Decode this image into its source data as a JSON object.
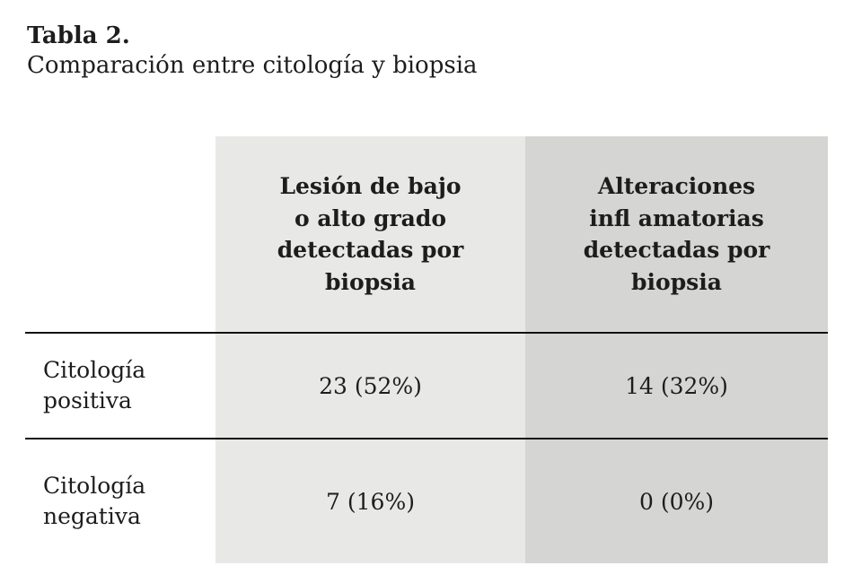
{
  "page": {
    "title_bold": "Tabla 2.",
    "title_rest": "Comparación entre citología y biopsia"
  },
  "chart_data": {
    "type": "table",
    "title": "Tabla 2. Comparación entre citología y biopsia",
    "columns": [
      "",
      "Lesión de bajo o alto grado detectadas por biopsia",
      "Alteraciones infl amatorias detectadas por biopsia"
    ],
    "rows": [
      [
        "Citología positiva",
        "23 (52%)",
        "14 (32%)"
      ],
      [
        "Citología negativa",
        "7 (16%)",
        "0 (0%)"
      ]
    ]
  },
  "table": {
    "col1_header_lines": [
      "Lesión de bajo",
      "o alto grado",
      "detectadas por",
      "biopsia"
    ],
    "col2_header_lines": [
      "Alteraciones",
      "infl amatorias",
      "detectadas por",
      "biopsia"
    ],
    "rows": [
      {
        "label": "Citología positiva",
        "col1": "23 (52%)",
        "col2": "14 (32%)"
      },
      {
        "label": "Citología negativa",
        "col1": "7 (16%)",
        "col2": "0 (0%)"
      }
    ]
  },
  "colors": {
    "col1_bg": "#e8e8e7",
    "col2_bg": "#d5d5d4",
    "text": "#1d1d1d",
    "rule": "#111111"
  }
}
